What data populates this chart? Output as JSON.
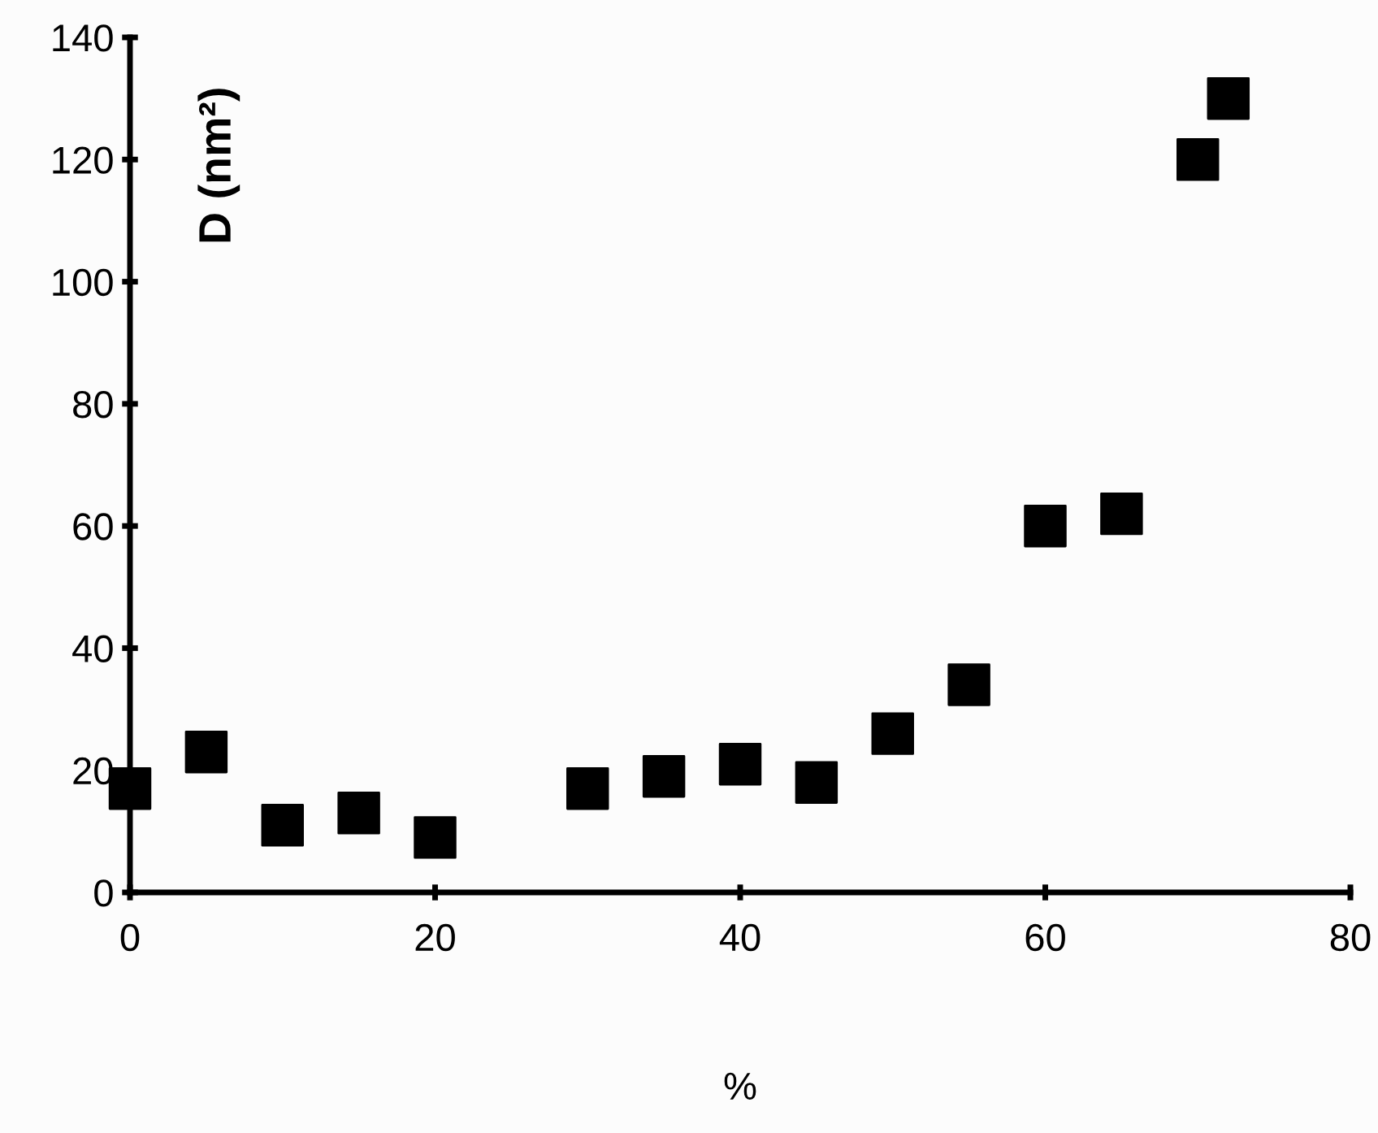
{
  "chart_data": {
    "type": "scatter",
    "xlabel": "%",
    "ylabel": "D (nm²)",
    "x": [
      0,
      5,
      10,
      15,
      20,
      30,
      35,
      40,
      45,
      50,
      55,
      60,
      65,
      70,
      72
    ],
    "series": [
      {
        "color": "#000000",
        "values": [
          17,
          23,
          11,
          13,
          9,
          17,
          19,
          21,
          18,
          26,
          34,
          60,
          62,
          120,
          130
        ]
      }
    ],
    "marker": "square",
    "xlim": [
      0,
      80
    ],
    "xticks": [
      0,
      20,
      40,
      60,
      80
    ],
    "ylim": [
      0,
      140
    ],
    "yticks": [
      0,
      20,
      40,
      60,
      80,
      100,
      120,
      140
    ],
    "grid": false,
    "legend": false
  }
}
